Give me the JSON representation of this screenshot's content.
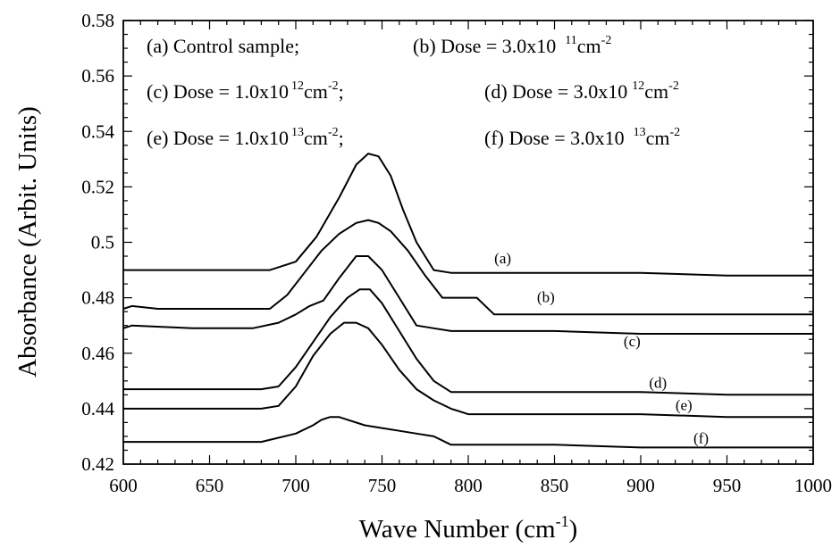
{
  "chart_data": {
    "type": "line",
    "xlabel": "Wave Number (cm",
    "xlabel_sup": "-1",
    "xlabel_end": ")",
    "ylabel": "Absorbance (Arbit. Units)",
    "xlim": [
      600,
      1000
    ],
    "ylim": [
      0.42,
      0.58
    ],
    "xticks": [
      "600",
      "650",
      "700",
      "750",
      "800",
      "850",
      "900",
      "950",
      "1000"
    ],
    "yticks": [
      "0.42",
      "0.44",
      "0.46",
      "0.48",
      "0.5",
      "0.52",
      "0.54",
      "0.56",
      "0.58"
    ],
    "grid": false,
    "legend": [
      {
        "text": "(a) Control sample;"
      },
      {
        "text": "(b) Dose = 3.0x10",
        "sup1": "11",
        "unit": "cm",
        "sup2": "-2"
      },
      {
        "text": "(c) Dose = 1.0x10",
        "sup1": "12",
        "unit": "cm",
        "sup2": "-2",
        "tail": ";"
      },
      {
        "text": "(d) Dose = 3.0x10",
        "sup1": "12",
        "unit": "cm",
        "sup2": "-2"
      },
      {
        "text": "(e) Dose = 1.0x10",
        "sup1": "13",
        "unit": "cm",
        "sup2": "-2",
        "tail": ";"
      },
      {
        "text": "(f) Dose = 3.0x10",
        "sup1": "13",
        "unit": "cm",
        "sup2": "-2"
      }
    ],
    "series": [
      {
        "name": "(a)",
        "label_x": 820,
        "label_y": 0.4925,
        "x": [
          600,
          650,
          685,
          700,
          712,
          725,
          735,
          742,
          748,
          755,
          762,
          770,
          780,
          790,
          800,
          850,
          900,
          950,
          1000
        ],
        "y": [
          0.49,
          0.49,
          0.49,
          0.493,
          0.502,
          0.516,
          0.528,
          0.532,
          0.531,
          0.524,
          0.512,
          0.5,
          0.49,
          0.489,
          0.489,
          0.489,
          0.489,
          0.488,
          0.488
        ]
      },
      {
        "name": "(b)",
        "label_x": 845,
        "label_y": 0.4785,
        "x": [
          600,
          605,
          620,
          640,
          660,
          685,
          695,
          705,
          715,
          725,
          735,
          742,
          748,
          755,
          765,
          775,
          785,
          795,
          805,
          815,
          850,
          900,
          950,
          1000
        ],
        "y": [
          0.476,
          0.477,
          0.476,
          0.476,
          0.476,
          0.476,
          0.481,
          0.489,
          0.497,
          0.503,
          0.507,
          0.508,
          0.507,
          0.504,
          0.497,
          0.488,
          0.48,
          0.48,
          0.48,
          0.474,
          0.474,
          0.474,
          0.474,
          0.474
        ]
      },
      {
        "name": "(c)",
        "label_x": 895,
        "label_y": 0.4625,
        "x": [
          600,
          605,
          640,
          665,
          675,
          690,
          700,
          708,
          716,
          725,
          735,
          742,
          750,
          760,
          770,
          780,
          790,
          800,
          850,
          900,
          950,
          1000
        ],
        "y": [
          0.469,
          0.47,
          0.469,
          0.469,
          0.469,
          0.471,
          0.474,
          0.477,
          0.479,
          0.487,
          0.495,
          0.495,
          0.49,
          0.48,
          0.47,
          0.469,
          0.468,
          0.468,
          0.468,
          0.467,
          0.467,
          0.467
        ]
      },
      {
        "name": "(d)",
        "label_x": 910,
        "label_y": 0.4475,
        "x": [
          600,
          640,
          660,
          680,
          690,
          700,
          710,
          720,
          730,
          737,
          743,
          750,
          760,
          770,
          780,
          790,
          800,
          850,
          900,
          950,
          1000
        ],
        "y": [
          0.447,
          0.447,
          0.447,
          0.447,
          0.448,
          0.455,
          0.464,
          0.473,
          0.48,
          0.483,
          0.483,
          0.478,
          0.468,
          0.458,
          0.45,
          0.446,
          0.446,
          0.446,
          0.446,
          0.445,
          0.445
        ]
      },
      {
        "name": "(e)",
        "label_x": 925,
        "label_y": 0.4395,
        "x": [
          600,
          640,
          680,
          690,
          700,
          710,
          720,
          728,
          735,
          742,
          750,
          760,
          770,
          780,
          790,
          800,
          810,
          850,
          900,
          950,
          1000
        ],
        "y": [
          0.44,
          0.44,
          0.44,
          0.441,
          0.448,
          0.459,
          0.467,
          0.471,
          0.471,
          0.469,
          0.463,
          0.454,
          0.447,
          0.443,
          0.44,
          0.438,
          0.438,
          0.438,
          0.438,
          0.437,
          0.437
        ]
      },
      {
        "name": "(f)",
        "label_x": 935,
        "label_y": 0.4275,
        "x": [
          600,
          640,
          680,
          700,
          710,
          715,
          720,
          725,
          730,
          740,
          750,
          760,
          770,
          780,
          790,
          800,
          850,
          900,
          950,
          1000
        ],
        "y": [
          0.428,
          0.428,
          0.428,
          0.431,
          0.434,
          0.436,
          0.437,
          0.437,
          0.436,
          0.434,
          0.433,
          0.432,
          0.431,
          0.43,
          0.427,
          0.427,
          0.427,
          0.426,
          0.426,
          0.426
        ]
      }
    ]
  }
}
